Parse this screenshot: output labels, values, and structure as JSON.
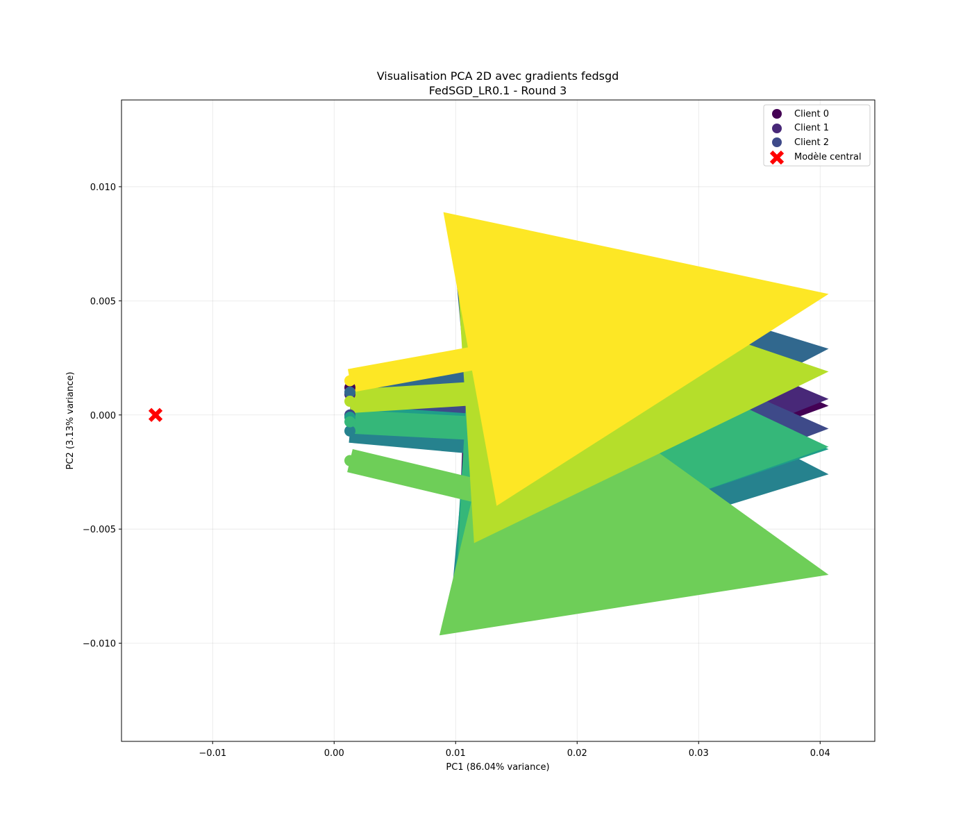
{
  "chart_data": {
    "type": "scatter",
    "title": "Visualisation PCA 2D avec gradients fedsgd",
    "subtitle": "FedSGD_LR0.1 - Round 3",
    "xlabel": "PC1 (86.04% variance)",
    "ylabel": "PC2 (3.13% variance)",
    "xlim": [
      -0.0175,
      0.0445
    ],
    "ylim": [
      -0.0143,
      0.0138
    ],
    "xticks": [
      -0.01,
      0.0,
      0.01,
      0.02,
      0.03,
      0.04
    ],
    "xtick_labels": [
      "−0.01",
      "0.00",
      "0.01",
      "0.02",
      "0.03",
      "0.04"
    ],
    "yticks": [
      -0.01,
      -0.005,
      0.0,
      0.005,
      0.01
    ],
    "ytick_labels": [
      "−0.010",
      "−0.005",
      "0.000",
      "0.005",
      "0.010"
    ],
    "grid": true,
    "legend_position": "top-right",
    "legend": [
      {
        "label": "Client 0",
        "color": "#440154",
        "marker": "circle"
      },
      {
        "label": "Client 1",
        "color": "#482878",
        "marker": "circle"
      },
      {
        "label": "Client 2",
        "color": "#3e4a89",
        "marker": "circle"
      },
      {
        "label": "Modèle central",
        "color": "#ff0000",
        "marker": "x"
      }
    ],
    "central_model": {
      "x": -0.0147,
      "y": 0.0
    },
    "clients": [
      {
        "color": "#440154",
        "x": 0.0013,
        "y": 0.0012,
        "dx": 0.0394,
        "dy": -0.0008
      },
      {
        "color": "#482878",
        "x": 0.0013,
        "y": 0.0009,
        "dx": 0.0394,
        "dy": -0.0002
      },
      {
        "color": "#3e4a89",
        "x": 0.0013,
        "y": 0.0,
        "dx": 0.0394,
        "dy": -0.0006
      },
      {
        "color": "#31688e",
        "x": 0.0013,
        "y": 0.001,
        "dx": 0.0394,
        "dy": 0.0019
      },
      {
        "color": "#26828e",
        "x": 0.0013,
        "y": -0.0007,
        "dx": 0.0394,
        "dy": -0.0019
      },
      {
        "color": "#1f9e89",
        "x": 0.0013,
        "y": -0.0001,
        "dx": 0.0394,
        "dy": -0.0014
      },
      {
        "color": "#35b779",
        "x": 0.0013,
        "y": -0.0003,
        "dx": 0.0394,
        "dy": -0.0011
      },
      {
        "color": "#6ece58",
        "x": 0.0013,
        "y": -0.002,
        "dx": 0.0394,
        "dy": -0.005
      },
      {
        "color": "#b5de2b",
        "x": 0.0013,
        "y": 0.0006,
        "dx": 0.0394,
        "dy": 0.0013
      },
      {
        "color": "#fde725",
        "x": 0.0013,
        "y": 0.0015,
        "dx": 0.0394,
        "dy": 0.0038
      }
    ]
  }
}
